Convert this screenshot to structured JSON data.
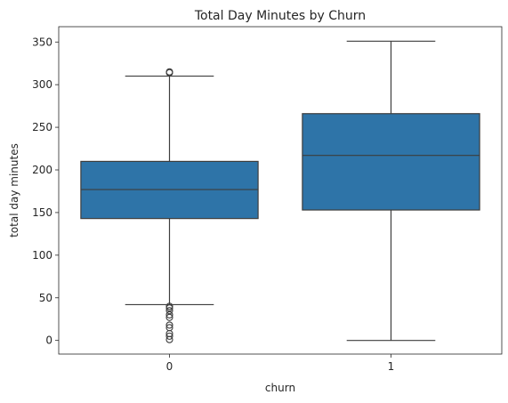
{
  "chart_data": {
    "type": "box",
    "title": "Total Day Minutes by Churn",
    "xlabel": "churn",
    "ylabel": "total day minutes",
    "categories": [
      "0",
      "1"
    ],
    "ylim": [
      -16,
      368
    ],
    "yticks": [
      0,
      50,
      100,
      150,
      200,
      250,
      300,
      350
    ],
    "grid": false,
    "box_color": "#2e74a8",
    "edge_color": "#3d3d3d",
    "boxes": [
      {
        "category": "0",
        "whisker_low": 42,
        "q1": 143,
        "median": 177,
        "q3": 210,
        "whisker_high": 310,
        "outliers": [
          315,
          314,
          40,
          38,
          35,
          30,
          27,
          18,
          15,
          8,
          5,
          1
        ]
      },
      {
        "category": "1",
        "whisker_low": 0,
        "q1": 153,
        "median": 217,
        "q3": 266,
        "whisker_high": 351,
        "outliers": []
      }
    ]
  }
}
